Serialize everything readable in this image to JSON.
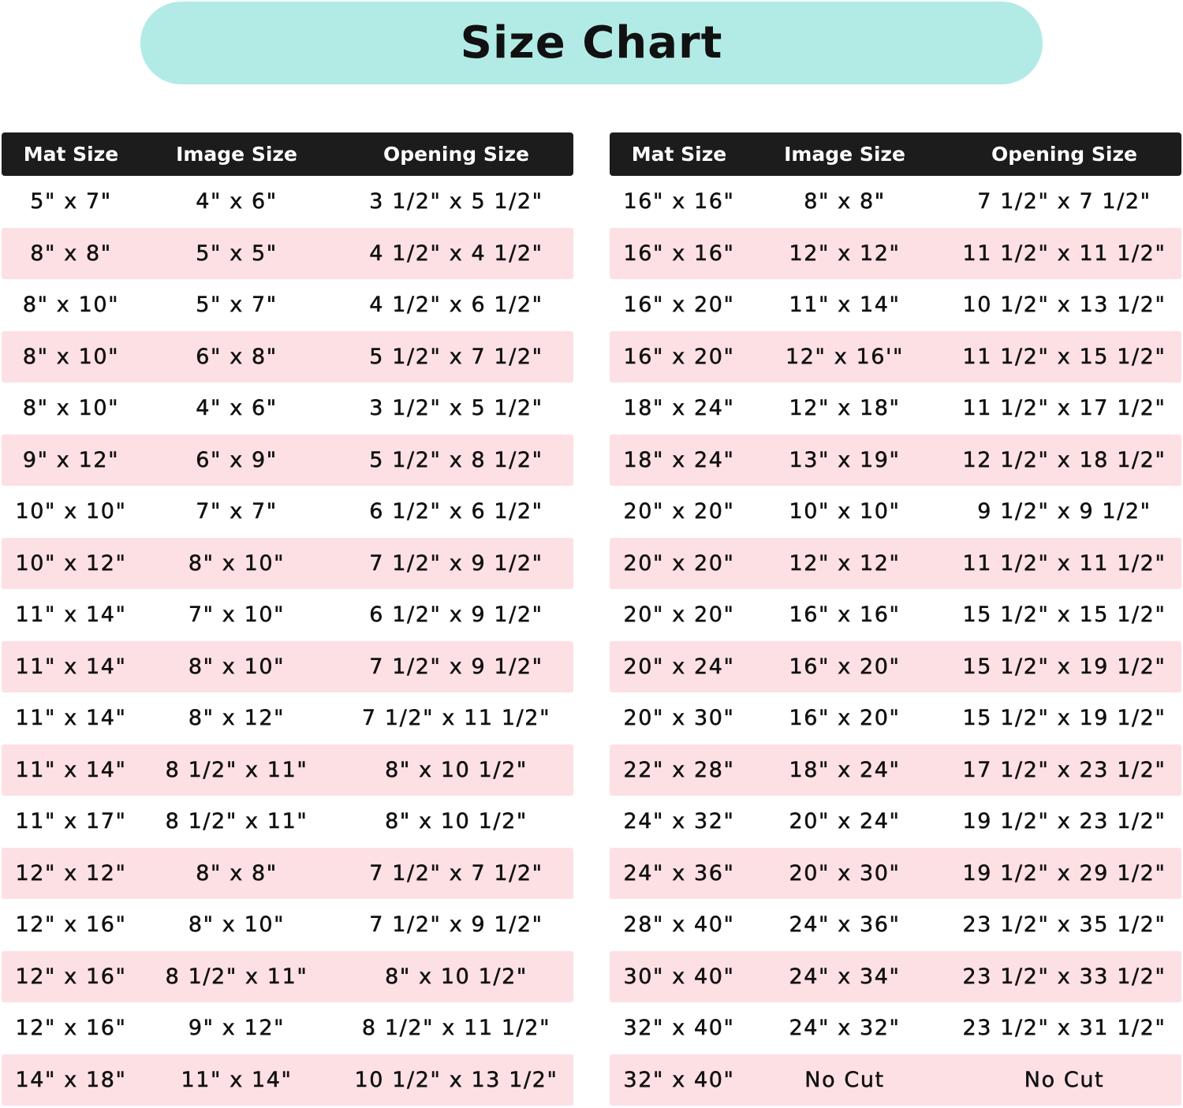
{
  "title": "Size Chart",
  "colors": {
    "title_bg": "#b2ebe6",
    "header_bg": "#1c1c1c",
    "stripe": "#fde0e4"
  },
  "headers": [
    "Mat Size",
    "Image Size",
    "Opening Size"
  ],
  "left_table": [
    [
      "5\" x 7\"",
      "4\" x 6\"",
      "3 1/2\" x 5 1/2\""
    ],
    [
      "8\" x 8\"",
      "5\" x 5\"",
      "4 1/2\" x 4 1/2\""
    ],
    [
      "8\" x 10\"",
      "5\" x 7\"",
      "4 1/2\" x 6 1/2\""
    ],
    [
      "8\" x 10\"",
      "6\" x 8\"",
      "5 1/2\" x 7 1/2\""
    ],
    [
      "8\" x 10\"",
      "4\" x 6\"",
      "3 1/2\" x 5 1/2\""
    ],
    [
      "9\" x 12\"",
      "6\" x 9\"",
      "5 1/2\" x 8 1/2\""
    ],
    [
      "10\" x 10\"",
      "7\" x 7\"",
      "6 1/2\" x 6 1/2\""
    ],
    [
      "10\" x 12\"",
      "8\" x 10\"",
      "7 1/2\" x 9 1/2\""
    ],
    [
      "11\" x 14\"",
      "7\" x 10\"",
      "6 1/2\" x 9 1/2\""
    ],
    [
      "11\" x 14\"",
      "8\" x 10\"",
      "7 1/2\" x 9 1/2\""
    ],
    [
      "11\" x 14\"",
      "8\" x 12\"",
      "7 1/2\" x 11 1/2\""
    ],
    [
      "11\" x 14\"",
      "8 1/2\" x 11\"",
      "8\" x 10 1/2\""
    ],
    [
      "11\" x 17\"",
      "8 1/2\" x 11\"",
      "8\" x 10 1/2\""
    ],
    [
      "12\" x 12\"",
      "8\" x 8\"",
      "7 1/2\" x 7 1/2\""
    ],
    [
      "12\" x 16\"",
      "8\" x 10\"",
      "7 1/2\" x 9 1/2\""
    ],
    [
      "12\" x 16\"",
      "8 1/2\" x 11\"",
      "8\" x 10 1/2\""
    ],
    [
      "12\" x 16\"",
      "9\" x 12\"",
      "8 1/2\" x 11 1/2\""
    ],
    [
      "14\" x 18\"",
      "11\" x 14\"",
      "10 1/2\" x 13 1/2\""
    ]
  ],
  "right_table": [
    [
      "16\" x 16\"",
      "8\" x 8\"",
      "7 1/2\" x 7 1/2\""
    ],
    [
      "16\" x 16\"",
      "12\" x 12\"",
      "11 1/2\" x 11 1/2\""
    ],
    [
      "16\" x 20\"",
      "11\" x 14\"",
      "10 1/2\" x 13 1/2\""
    ],
    [
      "16\" x 20\"",
      "12\" x 16'\"",
      "11 1/2\" x 15 1/2\""
    ],
    [
      "18\" x 24\"",
      "12\" x 18\"",
      "11 1/2\" x 17 1/2\""
    ],
    [
      "18\" x 24\"",
      "13\" x 19\"",
      "12 1/2\" x 18 1/2\""
    ],
    [
      "20\" x 20\"",
      "10\" x 10\"",
      "9 1/2\" x 9 1/2\""
    ],
    [
      "20\" x 20\"",
      "12\" x 12\"",
      "11 1/2\" x 11 1/2\""
    ],
    [
      "20\" x 20\"",
      "16\" x 16\"",
      "15 1/2\" x 15 1/2\""
    ],
    [
      "20\" x 24\"",
      "16\" x 20\"",
      "15 1/2\" x 19 1/2\""
    ],
    [
      "20\" x 30\"",
      "16\" x 20\"",
      "15 1/2\" x 19 1/2\""
    ],
    [
      "22\" x 28\"",
      "18\" x 24\"",
      "17 1/2\" x 23 1/2\""
    ],
    [
      "24\" x 32\"",
      "20\" x 24\"",
      "19 1/2\" x 23 1/2\""
    ],
    [
      "24\" x 36\"",
      "20\" x 30\"",
      "19 1/2\" x 29 1/2\""
    ],
    [
      "28\" x 40\"",
      "24\" x 36\"",
      "23 1/2\" x 35 1/2\""
    ],
    [
      "30\" x 40\"",
      "24\" x 34\"",
      "23 1/2\" x 33 1/2\""
    ],
    [
      "32\" x 40\"",
      "24\" x 32\"",
      "23 1/2\" x 31 1/2\""
    ],
    [
      "32\" x 40\"",
      "No Cut",
      "No Cut"
    ]
  ]
}
